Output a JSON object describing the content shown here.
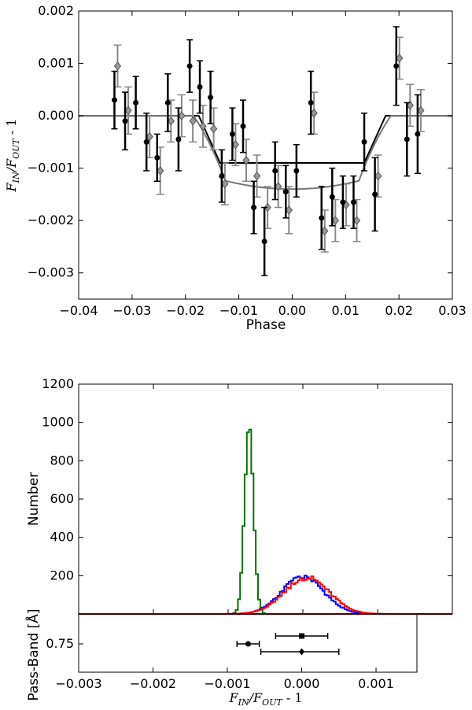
{
  "chart_data": [
    {
      "type": "scatter",
      "xlabel": "Phase",
      "ylabel": "F_IN/F_OUT - 1",
      "xlim": [
        -0.04,
        0.03
      ],
      "ylim": [
        -0.0035,
        0.002
      ],
      "xticks": [
        "−0.04",
        "−0.03",
        "−0.02",
        "−0.01",
        "0.00",
        "0.01",
        "0.02",
        "0.03"
      ],
      "yticks": [
        "−0.003",
        "−0.002",
        "−0.001",
        "0.000",
        "0.001",
        "0.002"
      ],
      "grid": false,
      "colors": {
        "dots": "#000000",
        "diamonds": "#888888",
        "model_box": "#000000",
        "model_curve": "#777777"
      },
      "series": [
        {
          "marker": "circle",
          "points": [
            {
              "x": -0.0333,
              "y": 0.0003,
              "err": 0.00055
            },
            {
              "x": -0.0313,
              "y": -0.0001,
              "err": 0.00055
            },
            {
              "x": -0.0293,
              "y": 0.00025,
              "err": 0.0005
            },
            {
              "x": -0.0273,
              "y": -0.0005,
              "err": 0.00055
            },
            {
              "x": -0.0253,
              "y": -0.0008,
              "err": 0.00045
            },
            {
              "x": -0.0233,
              "y": 0.00025,
              "err": 0.00055
            },
            {
              "x": -0.0213,
              "y": -0.00045,
              "err": 0.0006
            },
            {
              "x": -0.0192,
              "y": 0.00095,
              "err": 0.0005
            },
            {
              "x": -0.0173,
              "y": 0.00055,
              "err": 0.0005
            },
            {
              "x": -0.0153,
              "y": 0.00035,
              "err": 0.0005
            },
            {
              "x": -0.0132,
              "y": -0.00115,
              "err": 0.0005
            },
            {
              "x": -0.0112,
              "y": -0.00035,
              "err": 0.0005
            },
            {
              "x": -0.0092,
              "y": -0.0002,
              "err": 0.0005
            },
            {
              "x": -0.0072,
              "y": -0.00175,
              "err": 0.0005
            },
            {
              "x": -0.0052,
              "y": -0.0024,
              "err": 0.00065
            },
            {
              "x": -0.0032,
              "y": -0.00105,
              "err": 0.00055
            },
            {
              "x": -0.0012,
              "y": -0.00145,
              "err": 0.0005
            },
            {
              "x": 0.0008,
              "y": -0.00105,
              "err": 0.0005
            },
            {
              "x": 0.0035,
              "y": 0.00025,
              "err": 0.0006
            },
            {
              "x": 0.0055,
              "y": -0.00195,
              "err": 0.0006
            },
            {
              "x": 0.0075,
              "y": -0.00155,
              "err": 0.00055
            },
            {
              "x": 0.0095,
              "y": -0.00165,
              "err": 0.0005
            },
            {
              "x": 0.0115,
              "y": -0.00165,
              "err": 0.0005
            },
            {
              "x": 0.0135,
              "y": -0.0005,
              "err": 0.00055
            },
            {
              "x": 0.0155,
              "y": -0.0015,
              "err": 0.0007
            },
            {
              "x": 0.0195,
              "y": 0.00095,
              "err": 0.00075
            },
            {
              "x": 0.0215,
              "y": -0.00045,
              "err": 0.0007
            },
            {
              "x": 0.0235,
              "y": -0.00035,
              "err": 0.00075
            }
          ]
        },
        {
          "marker": "diamond",
          "points": [
            {
              "x": -0.0333,
              "y": 0.00095,
              "err": 0.0004
            },
            {
              "x": -0.0313,
              "y": 0.0001,
              "err": 0.00045
            },
            {
              "x": -0.0273,
              "y": -0.0004,
              "err": 0.0004
            },
            {
              "x": -0.0253,
              "y": -0.00105,
              "err": 0.00045
            },
            {
              "x": -0.0233,
              "y": -0.0001,
              "err": 0.0004
            },
            {
              "x": -0.0213,
              "y": 0.0,
              "err": 0.0004
            },
            {
              "x": -0.0192,
              "y": -0.0001,
              "err": 0.0004
            },
            {
              "x": -0.0173,
              "y": -0.0002,
              "err": 0.0004
            },
            {
              "x": -0.0153,
              "y": -0.00025,
              "err": 0.0004
            },
            {
              "x": -0.0132,
              "y": -0.0013,
              "err": 0.0004
            },
            {
              "x": -0.0112,
              "y": -0.00055,
              "err": 0.0004
            },
            {
              "x": -0.0092,
              "y": -0.00085,
              "err": 0.0004
            },
            {
              "x": -0.0072,
              "y": -0.00115,
              "err": 0.0004
            },
            {
              "x": -0.0052,
              "y": -0.00175,
              "err": 0.0004
            },
            {
              "x": -0.0032,
              "y": -0.00135,
              "err": 0.0004
            },
            {
              "x": -0.0012,
              "y": -0.0018,
              "err": 0.00045
            },
            {
              "x": 0.0035,
              "y": 5e-05,
              "err": 0.0004
            },
            {
              "x": 0.0055,
              "y": -0.0022,
              "err": 0.0004
            },
            {
              "x": 0.0075,
              "y": -0.002,
              "err": 0.0004
            },
            {
              "x": 0.0095,
              "y": -0.0017,
              "err": 0.0004
            },
            {
              "x": 0.0115,
              "y": -0.002,
              "err": 0.0004
            },
            {
              "x": 0.0155,
              "y": -0.00115,
              "err": 0.0004
            },
            {
              "x": 0.0195,
              "y": 0.0011,
              "err": 0.0004
            },
            {
              "x": 0.0215,
              "y": 0.0002,
              "err": 0.0004
            },
            {
              "x": 0.0235,
              "y": 0.0001,
              "err": 0.0004
            }
          ]
        }
      ],
      "model_box": [
        [
          -0.04,
          0.0
        ],
        [
          -0.0175,
          0.0
        ],
        [
          -0.0135,
          -0.0009
        ],
        [
          0.0135,
          -0.0009
        ],
        [
          0.0175,
          0.0
        ],
        [
          0.03,
          0.0
        ]
      ],
      "model_curve_params": {
        "t1": -0.0185,
        "t2": -0.0125,
        "t3": 0.0125,
        "t4": 0.0185,
        "depth": 0.0014
      }
    },
    {
      "type": "histogram",
      "xlabel": "F_IN/F_OUT - 1",
      "ylabel": "Number",
      "xlim": [
        -0.003,
        0.002
      ],
      "ylim": [
        0,
        1200
      ],
      "xticks": [
        "−0.003",
        "−0.002",
        "−0.001",
        "0.000",
        "0.001"
      ],
      "yticks": [
        "200",
        "400",
        "600",
        "800",
        "1000",
        "1200"
      ],
      "colors": {
        "narrow": "#007700",
        "wide_a": "#0000ff",
        "wide_b": "#ff0000",
        "baseline": "#8b0000"
      },
      "series": [
        {
          "color": "narrow",
          "center": -0.00072,
          "sigma": 6e-05,
          "peak": 965
        },
        {
          "color": "wide_a",
          "center": 0.0,
          "sigma": 0.00028,
          "peak": 195
        },
        {
          "color": "wide_b",
          "center": 5e-05,
          "sigma": 0.0003,
          "peak": 190
        }
      ]
    },
    {
      "type": "scatter",
      "ylabel": "Pass-Band [Å]",
      "xlim": [
        -0.003,
        0.002
      ],
      "yticks": [
        "0.75"
      ],
      "points": [
        {
          "marker": "square",
          "x": 0.0,
          "level": 3,
          "xerr_low": 0.00035,
          "xerr_high": 0.00035
        },
        {
          "marker": "circle",
          "x": -0.00072,
          "level": 2,
          "xerr_low": 0.00015,
          "xerr_high": 0.00015
        },
        {
          "marker": "diamond",
          "x": 0.0,
          "level": 1,
          "xerr_low": 0.00055,
          "xerr_high": 0.0005
        }
      ]
    }
  ]
}
